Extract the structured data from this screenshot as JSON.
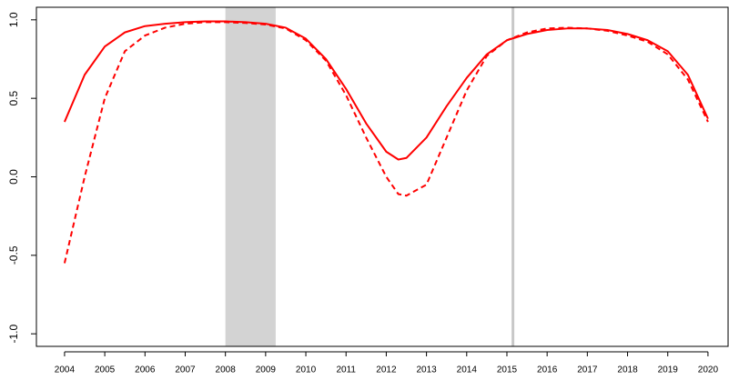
{
  "chart_data": {
    "type": "line",
    "x": [
      2004,
      2004.5,
      2005,
      2005.5,
      2006,
      2006.5,
      2007,
      2007.5,
      2008,
      2008.5,
      2009,
      2009.5,
      2010,
      2010.5,
      2011,
      2011.5,
      2012,
      2012.3,
      2012.5,
      2013,
      2013.5,
      2014,
      2014.5,
      2015,
      2015.5,
      2016,
      2016.5,
      2017,
      2017.5,
      2018,
      2018.5,
      2019,
      2019.5,
      2020
    ],
    "series": [
      {
        "color": "#ff0000",
        "dash": "solid",
        "values": [
          0.35,
          0.65,
          0.83,
          0.92,
          0.96,
          0.975,
          0.985,
          0.99,
          0.99,
          0.985,
          0.975,
          0.95,
          0.88,
          0.75,
          0.56,
          0.34,
          0.16,
          0.11,
          0.12,
          0.25,
          0.45,
          0.63,
          0.78,
          0.87,
          0.91,
          0.935,
          0.945,
          0.945,
          0.935,
          0.91,
          0.87,
          0.8,
          0.65,
          0.37
        ]
      },
      {
        "color": "#ff0000",
        "dash": "dashed",
        "values": [
          -0.55,
          0.0,
          0.5,
          0.8,
          0.9,
          0.95,
          0.975,
          0.985,
          0.985,
          0.98,
          0.97,
          0.945,
          0.87,
          0.74,
          0.52,
          0.25,
          0.0,
          -0.11,
          -0.12,
          -0.05,
          0.25,
          0.55,
          0.77,
          0.87,
          0.92,
          0.945,
          0.95,
          0.945,
          0.93,
          0.9,
          0.86,
          0.78,
          0.62,
          0.35
        ]
      }
    ],
    "xlim": [
      2003.3,
      2020.5
    ],
    "ylim": [
      -1.08,
      1.08
    ],
    "xticks": [
      2004,
      2005,
      2006,
      2007,
      2008,
      2009,
      2010,
      2011,
      2012,
      2013,
      2014,
      2015,
      2016,
      2017,
      2018,
      2019,
      2020
    ],
    "yticks": [
      {
        "value": -1,
        "label": "-1.0"
      },
      -0.5,
      {
        "value": 0,
        "label": "0.0"
      },
      0.5,
      {
        "value": 1,
        "label": "1.0"
      }
    ],
    "shaded_regions": [
      [
        2008,
        2009.25
      ]
    ],
    "shade_color": "#d3d3d3",
    "vlines": [
      2015.15
    ],
    "vline_color": "#c8c8c8"
  }
}
